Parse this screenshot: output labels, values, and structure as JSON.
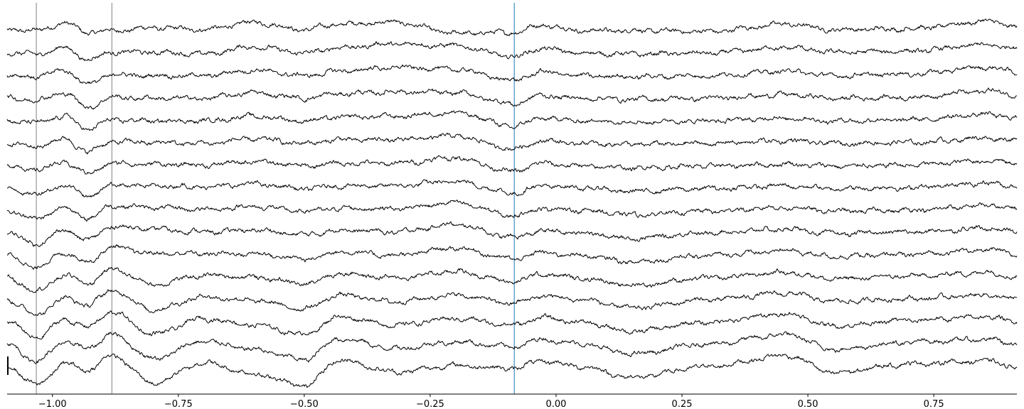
{
  "chart_data": {
    "type": "line",
    "title": "",
    "xlabel": "",
    "ylabel": "",
    "xlim": [
      -1.09,
      0.915
    ],
    "x_ticks": [
      -1.0,
      -0.75,
      -0.5,
      -0.25,
      0.0,
      0.25,
      0.5,
      0.75
    ],
    "x_tick_labels": [
      "−1.00",
      "−0.75",
      "−0.50",
      "−0.25",
      "0.00",
      "0.25",
      "0.50",
      "0.75"
    ],
    "n_traces": 16,
    "trace_color": "#000000",
    "vertical_markers": [
      {
        "x": -1.032,
        "color": "#808080"
      },
      {
        "x": -0.882,
        "color": "#808080"
      },
      {
        "x": -0.083,
        "color": "#1f77b4"
      }
    ],
    "x_sample": [
      -1.09,
      -1.032,
      -0.975,
      -0.93,
      -0.882,
      -0.8,
      -0.7,
      -0.6,
      -0.5,
      -0.43,
      -0.32,
      -0.2,
      -0.083,
      -0.03,
      0.05,
      0.15,
      0.3,
      0.46,
      0.55,
      0.7,
      0.86,
      0.915
    ],
    "series": [
      {
        "values": [
          0.1,
          0.0,
          0.8,
          -0.2,
          0.0,
          0.3,
          0.1,
          0.9,
          0.1,
          0.7,
          0.9,
          -0.3,
          -0.2,
          0.6,
          0.0,
          0.0,
          -0.1,
          0.7,
          0.1,
          0.2,
          1.0,
          0.4
        ]
      },
      {
        "values": [
          0.0,
          -0.1,
          0.6,
          -0.7,
          0.1,
          0.1,
          -0.1,
          0.7,
          0.0,
          0.6,
          1.0,
          0.8,
          -0.4,
          0.5,
          0.0,
          -0.1,
          0.0,
          0.6,
          0.1,
          0.2,
          0.9,
          0.5
        ]
      },
      {
        "values": [
          0.0,
          -0.1,
          0.6,
          -0.9,
          0.1,
          0.0,
          0.0,
          0.6,
          0.0,
          0.5,
          0.9,
          0.7,
          -0.5,
          0.4,
          0.0,
          -0.1,
          0.0,
          0.5,
          0.0,
          0.2,
          0.9,
          0.4
        ]
      },
      {
        "values": [
          0.0,
          -0.2,
          0.6,
          -1.0,
          0.1,
          0.0,
          0.0,
          0.6,
          0.0,
          0.5,
          0.7,
          0.6,
          -0.6,
          0.3,
          0.0,
          -0.1,
          0.0,
          0.4,
          0.0,
          0.1,
          0.8,
          0.4
        ]
      },
      {
        "values": [
          0.0,
          -0.2,
          0.5,
          -0.9,
          0.1,
          0.0,
          0.0,
          0.5,
          0.0,
          0.4,
          0.5,
          0.9,
          -0.6,
          0.3,
          0.0,
          -0.1,
          0.0,
          0.3,
          0.0,
          0.1,
          0.7,
          0.3
        ]
      },
      {
        "values": [
          0.0,
          -0.3,
          0.5,
          -0.9,
          0.2,
          0.1,
          0.0,
          0.5,
          0.0,
          0.4,
          0.4,
          0.8,
          -0.6,
          0.3,
          0.0,
          -0.1,
          0.0,
          0.3,
          0.0,
          0.1,
          0.6,
          0.3
        ]
      },
      {
        "values": [
          0.0,
          -0.4,
          0.4,
          -0.8,
          0.3,
          0.2,
          0.1,
          0.5,
          0.0,
          0.3,
          0.3,
          0.9,
          -0.6,
          0.3,
          0.0,
          -0.2,
          0.0,
          0.2,
          0.0,
          0.1,
          0.6,
          0.3
        ]
      },
      {
        "values": [
          0.0,
          -0.6,
          0.4,
          -0.8,
          0.4,
          0.3,
          0.2,
          0.5,
          0.0,
          0.3,
          0.3,
          0.8,
          -0.5,
          0.3,
          0.1,
          -0.3,
          0.0,
          0.3,
          0.0,
          0.1,
          0.6,
          0.3
        ]
      },
      {
        "values": [
          0.0,
          -0.8,
          0.4,
          -0.8,
          0.6,
          0.4,
          0.2,
          0.5,
          0.0,
          0.3,
          0.3,
          0.9,
          -0.5,
          0.3,
          0.1,
          -0.4,
          0.0,
          0.4,
          0.0,
          0.1,
          0.6,
          0.3
        ]
      },
      {
        "values": [
          0.1,
          -1.1,
          0.4,
          -0.7,
          0.8,
          0.5,
          0.2,
          0.4,
          -0.1,
          0.4,
          0.2,
          1.0,
          -0.4,
          0.3,
          0.1,
          -0.5,
          0.1,
          0.5,
          0.0,
          0.2,
          0.6,
          0.2
        ]
      },
      {
        "values": [
          0.1,
          -1.2,
          0.4,
          -0.6,
          1.0,
          0.3,
          0.3,
          0.3,
          -0.3,
          0.5,
          0.1,
          0.9,
          -0.3,
          0.4,
          0.1,
          -0.6,
          0.1,
          0.6,
          0.0,
          0.2,
          0.7,
          0.2
        ]
      },
      {
        "values": [
          0.2,
          -1.3,
          0.4,
          -0.5,
          1.1,
          -0.6,
          0.4,
          0.2,
          -0.5,
          0.6,
          0.1,
          0.8,
          -0.3,
          0.5,
          0.1,
          -0.7,
          0.1,
          0.7,
          0.0,
          0.3,
          0.7,
          0.2
        ]
      },
      {
        "values": [
          0.2,
          -1.4,
          0.4,
          -0.4,
          1.2,
          -0.9,
          0.5,
          0.1,
          -0.8,
          0.7,
          0.0,
          0.7,
          -0.2,
          0.6,
          0.2,
          -0.7,
          0.2,
          0.9,
          0.0,
          0.3,
          0.7,
          0.2
        ]
      },
      {
        "values": [
          0.3,
          -1.5,
          0.5,
          -0.3,
          1.3,
          -1.1,
          0.6,
          -0.1,
          -1.1,
          0.8,
          -0.1,
          0.6,
          -0.1,
          0.7,
          0.2,
          -0.8,
          0.2,
          1.1,
          -0.2,
          0.4,
          0.8,
          0.2
        ]
      },
      {
        "values": [
          0.3,
          -1.6,
          0.5,
          -0.2,
          1.4,
          -1.3,
          0.6,
          -0.3,
          -1.4,
          0.9,
          -0.2,
          0.5,
          0.0,
          0.8,
          0.3,
          -0.8,
          0.3,
          1.3,
          -0.3,
          0.5,
          0.8,
          0.2
        ]
      },
      {
        "values": [
          0.4,
          -1.7,
          0.6,
          -0.1,
          1.5,
          -1.5,
          0.7,
          -0.5,
          -1.8,
          1.0,
          -0.3,
          0.4,
          0.1,
          0.9,
          0.3,
          -0.9,
          0.3,
          1.5,
          -0.4,
          0.6,
          0.9,
          0.2
        ]
      }
    ]
  }
}
